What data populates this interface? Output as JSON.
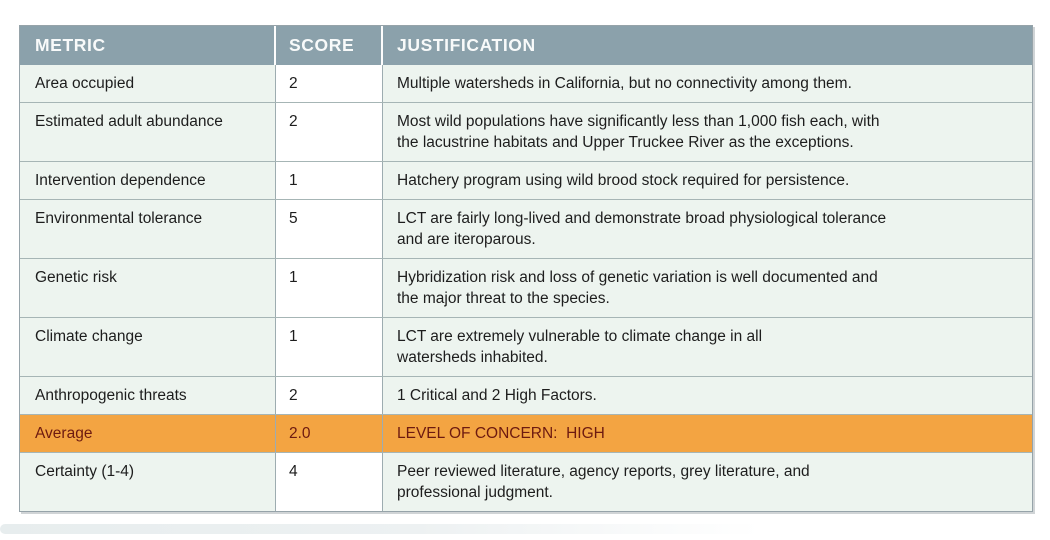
{
  "table": {
    "columns": [
      {
        "key": "metric",
        "label": "METRIC"
      },
      {
        "key": "score",
        "label": "SCORE"
      },
      {
        "key": "justification",
        "label": "JUSTIFICATION"
      }
    ],
    "rows": [
      {
        "metric": "Area occupied",
        "score": "2",
        "justification": "Multiple watersheds in California, but no connectivity among them.",
        "highlight": false
      },
      {
        "metric": "Estimated adult abundance",
        "score": "2",
        "justification": "Most wild populations have significantly less than 1,000 fish each, with\nthe lacustrine habitats and Upper Truckee River as the exceptions.",
        "highlight": false
      },
      {
        "metric": "Intervention dependence",
        "score": "1",
        "justification": "Hatchery program using wild brood stock required for persistence.",
        "highlight": false
      },
      {
        "metric": "Environmental tolerance",
        "score": "5",
        "justification": "LCT are fairly long-lived and demonstrate broad physiological tolerance\nand are iteroparous.",
        "highlight": false
      },
      {
        "metric": "Genetic risk",
        "score": "1",
        "justification": "Hybridization risk and loss of genetic variation is well documented and\nthe major threat to the species.",
        "highlight": false
      },
      {
        "metric": "Climate change",
        "score": "1",
        "justification": "LCT are extremely vulnerable to climate change in all\nwatersheds inhabited.",
        "highlight": false
      },
      {
        "metric": "Anthropogenic threats",
        "score": "2",
        "justification": "1 Critical and 2 High Factors.",
        "highlight": false
      },
      {
        "metric": "Average",
        "score": "2.0",
        "justification": "LEVEL OF CONCERN:  HIGH",
        "highlight": true
      },
      {
        "metric": "Certainty (1-4)",
        "score": "4",
        "justification": "Peer reviewed literature, agency reports, grey literature, and\nprofessional judgment.",
        "highlight": false
      }
    ],
    "colors": {
      "header_bg": "#8ba1ab",
      "header_text": "#f8fafa",
      "row_bg": "#edf4ef",
      "score_bg": "#ffffff",
      "highlight_bg": "#f3a442",
      "highlight_text": "#6d1a10",
      "body_text": "#1d1d1d",
      "border": "#9dacb0",
      "row_border": "#a6b5b5"
    }
  }
}
